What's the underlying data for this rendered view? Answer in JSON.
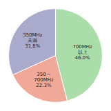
{
  "chart_data": {
    "type": "pie",
    "categories": [
      "700MHz\n以上\n46.0%",
      "350～\n700MHz\n22.3%",
      "350MHz\n未満\n31.8%"
    ],
    "values": [
      46.0,
      22.3,
      31.8
    ],
    "colors": [
      "#aaddaa",
      "#f0a898",
      "#aaaacc"
    ]
  }
}
